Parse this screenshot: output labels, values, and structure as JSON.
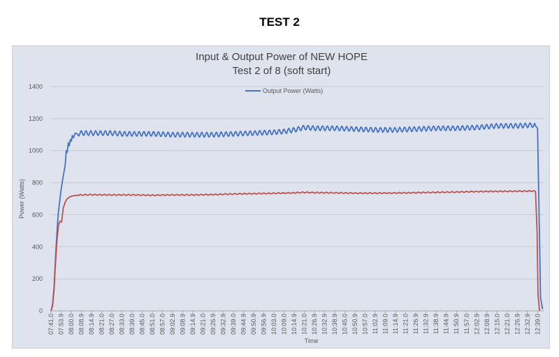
{
  "heading": "TEST 2",
  "chart_data": {
    "type": "line",
    "title": "Input & Output Power of NEW HOPE",
    "subtitle": "Test 2 of 8 (soft start)",
    "xlabel": "Time",
    "ylabel": "Power (Watts)",
    "ylim": [
      0,
      1400
    ],
    "yticks": [
      0,
      200,
      400,
      600,
      800,
      1000,
      1200,
      1400
    ],
    "grid": true,
    "legend": "top-center",
    "x_tick_labels": [
      "07:41.0",
      "07:53.9",
      "08:00.0",
      "08:08.9",
      "08:14.9",
      "08:21.0",
      "08:27.0",
      "08:33.0",
      "08:39.0",
      "08:45.0",
      "08:51.0",
      "08:57.0",
      "09:02.9",
      "09:08.9",
      "09:14.9",
      "09:21.0",
      "09:26.9",
      "09:32.9",
      "09:39.0",
      "09:44.9",
      "09:50.9",
      "09:56.9",
      "10:03.0",
      "10:09.0",
      "10:14.9",
      "10:21.0",
      "10:26.9",
      "10:32.9",
      "10:38.9",
      "10:45.0",
      "10:50.9",
      "10:57.0",
      "11:02.9",
      "11:09.0",
      "11:14.9",
      "11:21.0",
      "11:26.9",
      "11:32.9",
      "11:38.9",
      "11:44.9",
      "11:50.9",
      "11:57.0",
      "12:02.9",
      "12:08.9",
      "12:15.0",
      "12:21.0",
      "12:26.9",
      "12:32.9",
      "12:39.0"
    ],
    "series": [
      {
        "name": "Output Power (Watts)",
        "color": "#4472c4",
        "points": [
          [
            0,
            0
          ],
          [
            0.15,
            40
          ],
          [
            0.3,
            150
          ],
          [
            0.5,
            400
          ],
          [
            0.7,
            600
          ],
          [
            0.85,
            680
          ],
          [
            1.0,
            760
          ],
          [
            1.2,
            840
          ],
          [
            1.4,
            910
          ],
          [
            1.5,
            1000
          ],
          [
            1.6,
            990
          ],
          [
            1.7,
            1050
          ],
          [
            1.8,
            1030
          ],
          [
            1.9,
            1070
          ],
          [
            2.0,
            1060
          ],
          [
            2.1,
            1095
          ],
          [
            2.2,
            1080
          ],
          [
            2.4,
            1110
          ],
          [
            2.6,
            1105
          ],
          [
            3,
            1110
          ],
          [
            4,
            1110
          ],
          [
            5,
            1110
          ],
          [
            6,
            1110
          ],
          [
            7,
            1105
          ],
          [
            8,
            1105
          ],
          [
            10,
            1105
          ],
          [
            12,
            1100
          ],
          [
            14,
            1100
          ],
          [
            16,
            1100
          ],
          [
            18,
            1105
          ],
          [
            20,
            1110
          ],
          [
            22,
            1115
          ],
          [
            23,
            1120
          ],
          [
            24,
            1130
          ],
          [
            25,
            1145
          ],
          [
            26,
            1140
          ],
          [
            28,
            1140
          ],
          [
            30,
            1135
          ],
          [
            32,
            1130
          ],
          [
            34,
            1130
          ],
          [
            36,
            1135
          ],
          [
            38,
            1140
          ],
          [
            40,
            1140
          ],
          [
            42,
            1145
          ],
          [
            43,
            1150
          ],
          [
            44,
            1155
          ],
          [
            45,
            1155
          ],
          [
            46,
            1155
          ],
          [
            47,
            1158
          ],
          [
            47.5,
            1160
          ],
          [
            47.8,
            1155
          ],
          [
            48.0,
            1140
          ],
          [
            48.15,
            600
          ],
          [
            48.3,
            80
          ],
          [
            48.5,
            10
          ]
        ],
        "ripple": 15
      },
      {
        "name": "",
        "color": "#c0504d",
        "points": [
          [
            0,
            0
          ],
          [
            0.15,
            30
          ],
          [
            0.3,
            130
          ],
          [
            0.45,
            300
          ],
          [
            0.6,
            450
          ],
          [
            0.75,
            540
          ],
          [
            0.9,
            560
          ],
          [
            1.05,
            555
          ],
          [
            1.2,
            640
          ],
          [
            1.4,
            680
          ],
          [
            1.6,
            700
          ],
          [
            1.8,
            710
          ],
          [
            2.0,
            715
          ],
          [
            2.3,
            720
          ],
          [
            2.6,
            722
          ],
          [
            3,
            724
          ],
          [
            4,
            725
          ],
          [
            6,
            724
          ],
          [
            8,
            724
          ],
          [
            10,
            722
          ],
          [
            12,
            724
          ],
          [
            14,
            724
          ],
          [
            16,
            726
          ],
          [
            18,
            730
          ],
          [
            20,
            732
          ],
          [
            22,
            734
          ],
          [
            24,
            737
          ],
          [
            25,
            740
          ],
          [
            26,
            738
          ],
          [
            28,
            737
          ],
          [
            30,
            735
          ],
          [
            32,
            735
          ],
          [
            34,
            736
          ],
          [
            36,
            738
          ],
          [
            38,
            740
          ],
          [
            40,
            742
          ],
          [
            42,
            745
          ],
          [
            44,
            746
          ],
          [
            46,
            747
          ],
          [
            47,
            748
          ],
          [
            47.6,
            748
          ],
          [
            47.8,
            745
          ],
          [
            47.95,
            500
          ],
          [
            48.05,
            100
          ],
          [
            48.2,
            0
          ]
        ],
        "ripple": 3
      }
    ]
  }
}
